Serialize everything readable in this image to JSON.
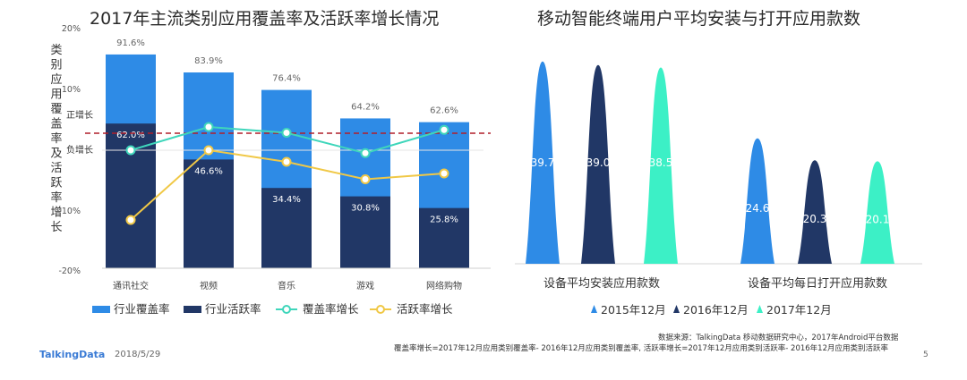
{
  "colors": {
    "coverage_bar": "#2e8be6",
    "active_bar": "#213766",
    "coverage_line": "#3fd6bb",
    "active_line": "#f0c846",
    "dashed": "#b01f2a",
    "y2015": "#2e8be6",
    "y2016": "#213766",
    "y2017": "#3cf0c6"
  },
  "left_chart": {
    "title": "2017年主流类别应用覆盖率及活跃率增长情况",
    "y_label_chars": [
      "类",
      "别",
      "应",
      "用",
      "覆",
      "盖",
      "率",
      "及",
      "活",
      "跃",
      "率",
      "增",
      "长"
    ],
    "y_ticks": [
      "20%",
      "10%",
      "10%",
      "-20%"
    ],
    "pos_label": "正增长",
    "neg_label": "负增长",
    "legend": [
      "行业覆盖率",
      "行业活跃率",
      "覆盖率增长",
      "活跃率增长"
    ]
  },
  "right_chart": {
    "title": "移动智能终端用户平均安装与打开应用款数",
    "legend": [
      "2015年12月",
      "2016年12月",
      "2017年12月"
    ]
  },
  "chart_data": [
    {
      "type": "bar",
      "categories": [
        "通讯社交",
        "视频",
        "音乐",
        "游戏",
        "网络购物"
      ],
      "series": [
        {
          "name": "行业覆盖率",
          "values": [
            91.6,
            83.9,
            76.4,
            64.2,
            62.6
          ],
          "labels": [
            "91.6%",
            "83.9%",
            "76.4%",
            "64.2%",
            "62.6%"
          ]
        },
        {
          "name": "行业活跃率",
          "values": [
            62.0,
            46.6,
            34.4,
            30.8,
            25.8
          ],
          "labels": [
            "62.0%",
            "46.6%",
            "34.4%",
            "30.8%",
            "25.8%"
          ]
        },
        {
          "name": "覆盖率增长",
          "values": [
            0,
            4,
            3,
            -0.5,
            3.5
          ]
        },
        {
          "name": "活跃率增长",
          "values": [
            -12,
            0,
            -2,
            -5,
            -4
          ]
        }
      ]
    },
    {
      "type": "bar",
      "categories": [
        "设备平均安装应用款数",
        "设备平均每日打开应用款数"
      ],
      "series": [
        {
          "name": "2015年12月",
          "values": [
            39.7,
            24.6
          ],
          "labels": [
            "39.7",
            "24.6"
          ]
        },
        {
          "name": "2016年12月",
          "values": [
            39.0,
            20.3
          ],
          "labels": [
            "39.0",
            "20.3"
          ]
        },
        {
          "name": "2017年12月",
          "values": [
            38.5,
            20.1
          ],
          "labels": [
            "38.5",
            "20.1"
          ]
        }
      ]
    }
  ],
  "footer": {
    "source": "数据来源：TalkingData 移动数据研究中心，2017年Android平台数据",
    "formula": "覆盖率增长=2017年12月应用类别覆盖率- 2016年12月应用类别覆盖率,   活跃率增长=2017年12月应用类别活跃率- 2016年12月应用类别活跃率",
    "brand": "TalkingData",
    "date": "2018/5/29",
    "page": "5"
  }
}
